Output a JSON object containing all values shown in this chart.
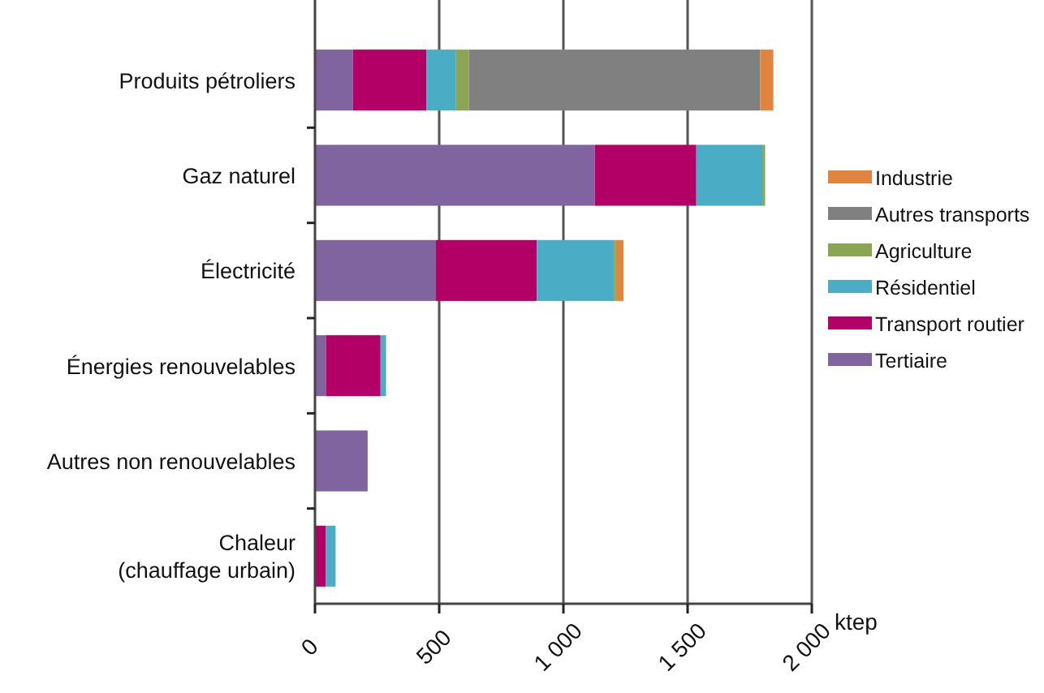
{
  "chart_data": {
    "type": "bar",
    "orientation": "horizontal",
    "stacked": true,
    "xlabel": "ktep",
    "categories": [
      "Produits pétroliers",
      "Gaz naturel",
      "Électricité",
      "Énergies renouvelables",
      "Autres non renouvelables",
      "Chaleur\n(chauffage urbain)"
    ],
    "series": [
      {
        "name": "Tertiaire",
        "color": "#8064a0",
        "values": [
          153,
          1126,
          487,
          44,
          212,
          0
        ]
      },
      {
        "name": "Transport routier",
        "color": "#b30066",
        "values": [
          295,
          409,
          406,
          220,
          0,
          44
        ]
      },
      {
        "name": "Résidentiel",
        "color": "#4aacc5",
        "values": [
          120,
          266,
          310,
          22,
          0,
          39
        ]
      },
      {
        "name": "Agriculture",
        "color": "#8aa653",
        "values": [
          52,
          11,
          9,
          0,
          0,
          0
        ]
      },
      {
        "name": "Autres transports",
        "color": "#808080",
        "values": [
          1172,
          0,
          0,
          0,
          0,
          0
        ]
      },
      {
        "name": "Industrie",
        "color": "#e0843e",
        "values": [
          53,
          0,
          30,
          0,
          0,
          0
        ]
      }
    ],
    "xlim": [
      0,
      2000
    ],
    "xticks": [
      0,
      500,
      {
        "value": 1000,
        "label": "1 000"
      },
      {
        "value": 1500,
        "label": "1 500"
      },
      {
        "value": 2000,
        "label": "2 000"
      }
    ],
    "grid": "x",
    "legend": "right"
  }
}
